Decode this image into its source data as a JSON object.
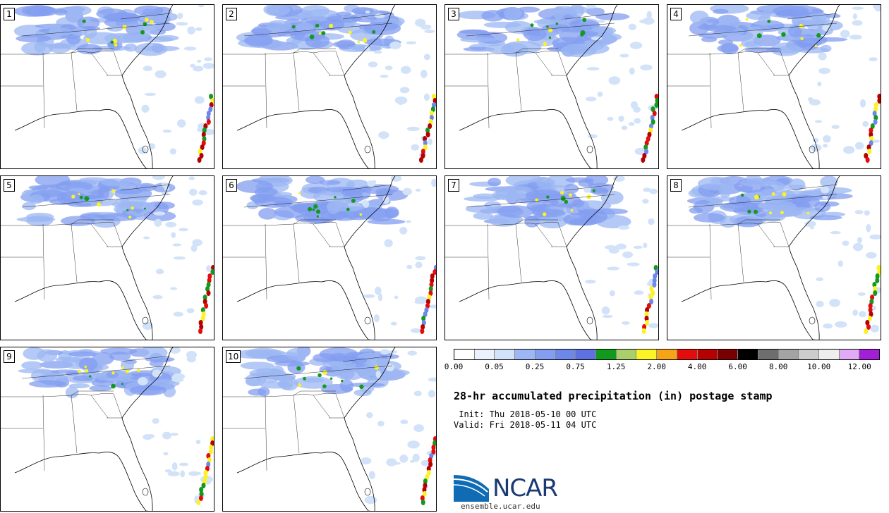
{
  "panels": [
    {
      "label": "1"
    },
    {
      "label": "2"
    },
    {
      "label": "3"
    },
    {
      "label": "4"
    },
    {
      "label": "5"
    },
    {
      "label": "6"
    },
    {
      "label": "7"
    },
    {
      "label": "8"
    },
    {
      "label": "9"
    },
    {
      "label": "10"
    }
  ],
  "colorbar": {
    "colors": [
      "#ffffff",
      "#eaf2fd",
      "#d2e2f8",
      "#9cb7f3",
      "#839ef0",
      "#6e87ea",
      "#5e71e0",
      "#129a1e",
      "#a9ce6b",
      "#fbf325",
      "#f7a318",
      "#e40d0d",
      "#b40101",
      "#780000",
      "#000000",
      "#6e6e6e",
      "#a3a3a3",
      "#cccccc",
      "#eeeeee",
      "#e0aaf5",
      "#a120d6"
    ],
    "tick_labels": [
      "0.00",
      "0.05",
      "0.25",
      "0.75",
      "1.25",
      "2.00",
      "4.00",
      "6.00",
      "8.00",
      "10.00",
      "12.00"
    ]
  },
  "title": "28-hr accumulated precipitation (in) postage stamp",
  "init": " Init: Thu 2018-05-10 00 UTC",
  "valid": "Valid: Fri 2018-05-11 04 UTC",
  "logo": {
    "text": "NCAR",
    "site": "ensemble.ucar.edu"
  }
}
